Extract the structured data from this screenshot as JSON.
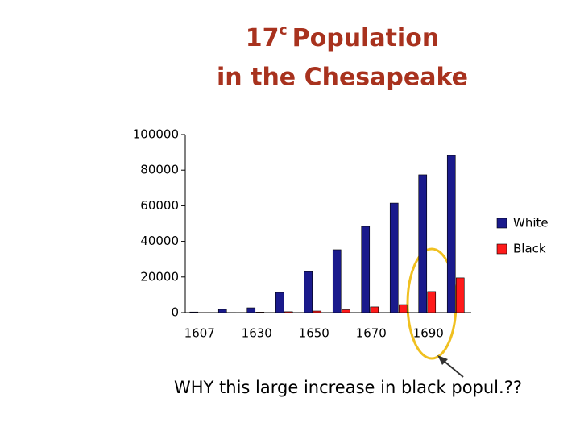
{
  "chart_data": {
    "type": "bar",
    "title_parts": [
      "17",
      "c",
      "Population",
      "in the Chesapeake"
    ],
    "categories": [
      "1607",
      null,
      "1630",
      null,
      "1650",
      null,
      "1670",
      null,
      "1690",
      null
    ],
    "series": [
      {
        "name": "White",
        "color": "#1a1a8c",
        "values": [
          350,
          1800,
          2700,
          11300,
          23000,
          35300,
          48400,
          61500,
          77400,
          88200
        ]
      },
      {
        "name": "Black",
        "color": "#ff1a1a",
        "values": [
          20,
          100,
          300,
          500,
          900,
          1600,
          3200,
          4500,
          11800,
          19500
        ]
      }
    ],
    "ylim": [
      0,
      100000
    ],
    "yticks": [
      0,
      20000,
      40000,
      60000,
      80000,
      100000
    ],
    "legend": "right",
    "annotation": "WHY this large increase in black popul.??"
  }
}
